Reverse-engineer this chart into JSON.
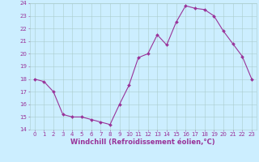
{
  "x": [
    0,
    1,
    2,
    3,
    4,
    5,
    6,
    7,
    8,
    9,
    10,
    11,
    12,
    13,
    14,
    15,
    16,
    17,
    18,
    19,
    20,
    21,
    22,
    23
  ],
  "y": [
    18.0,
    17.8,
    17.0,
    15.2,
    15.0,
    15.0,
    14.8,
    14.6,
    14.4,
    16.0,
    17.5,
    19.7,
    20.0,
    21.5,
    20.7,
    22.5,
    23.8,
    23.6,
    23.5,
    23.0,
    21.8,
    20.8,
    19.8,
    18.0
  ],
  "line_color": "#993399",
  "marker": "D",
  "marker_size": 2.0,
  "bg_color": "#cceeff",
  "grid_color": "#aacccc",
  "xlabel": "Windchill (Refroidissement éolien,°C)",
  "ylim": [
    14,
    24
  ],
  "xlim": [
    -0.5,
    23.5
  ],
  "yticks": [
    14,
    15,
    16,
    17,
    18,
    19,
    20,
    21,
    22,
    23,
    24
  ],
  "xticks": [
    0,
    1,
    2,
    3,
    4,
    5,
    6,
    7,
    8,
    9,
    10,
    11,
    12,
    13,
    14,
    15,
    16,
    17,
    18,
    19,
    20,
    21,
    22,
    23
  ],
  "tick_color": "#993399",
  "label_color": "#993399",
  "tick_fontsize": 5.0,
  "xlabel_fontsize": 6.0
}
